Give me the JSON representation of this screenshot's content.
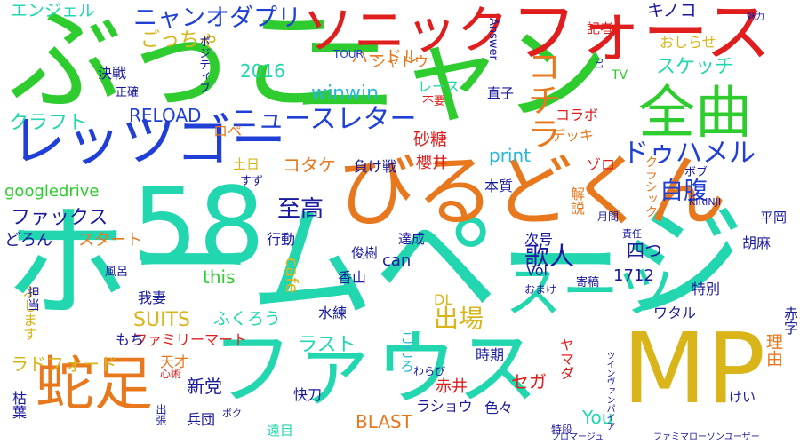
{
  "palette": {
    "green": "#2ECC2E",
    "teal": "#22D6B0",
    "blue": "#1F3FD6",
    "navy": "#1A1A9E",
    "red": "#E01E1E",
    "orange": "#E8781E",
    "yellow": "#D9B51A",
    "gold": "#C9A800",
    "aqua": "#27B7D9",
    "purple": "#6A1FB5",
    "lime": "#7ED321"
  },
  "words": [
    "ぶっこ",
    "ニャン",
    "ホームページ",
    "ソニック",
    "フォース",
    "58",
    "びるどくん",
    "全曲",
    "レッツゴー",
    "MP",
    "ファウス",
    "スーツ",
    "蛇足",
    "ニャンオダプリ",
    "ニュースレター",
    "コチラ",
    "ドゥハメル",
    "自腹",
    "至高",
    "歌人",
    "出場",
    "ラスト",
    "エンジェル",
    "ごっちゃ",
    "ハードル",
    "シャドウ",
    "スケッチ",
    "キノコ",
    "おしらせ",
    "記者",
    "2016",
    "winwin",
    "クラフト",
    "RELOAD",
    "googledrive",
    "ファックス",
    "SUITS",
    "ラドフォード",
    "新党",
    "ファミリーマート",
    "this",
    "can",
    "print",
    "コタケ",
    "負け戦",
    "砂糖",
    "櫻井",
    "本質",
    "次号",
    "四つ",
    "セガ",
    "赤井",
    "BLAST",
    "You",
    "DL",
    "こころ",
    "ワタル",
    "特別",
    "1712",
    "Vol",
    "ラショウ",
    "色々",
    "時期",
    "快刀",
    "兵団",
    "遠目",
    "天才",
    "我妻",
    "ふくろう",
    "もち",
    "水練",
    "行動",
    "達成",
    "俊樹",
    "香山",
    "cafe",
    "スタート",
    "どろん",
    "TOUR",
    "Answer",
    "直子",
    "01",
    "魅力",
    "決戦",
    "正確",
    "ポジティブ",
    "ロペ",
    "土日",
    "すず",
    "レース",
    "不要",
    "コラボ",
    "デッキ",
    "ゾロ",
    "ボブ",
    "クラシック",
    "解説",
    "月間",
    "責任",
    "平岡",
    "胡麻",
    "理由",
    "赤字",
    "寄稿",
    "おまけ",
    "わらび",
    "ヤマダ",
    "けい",
    "特段",
    "フロマージュ",
    "ファミマローソンユーザー",
    "ツインヴァンパイア",
    "ボク",
    "心術",
    "出張",
    "枯葉",
    "ぶします",
    "担当",
    "風呂",
    "TV",
    "KIRINJI"
  ]
}
